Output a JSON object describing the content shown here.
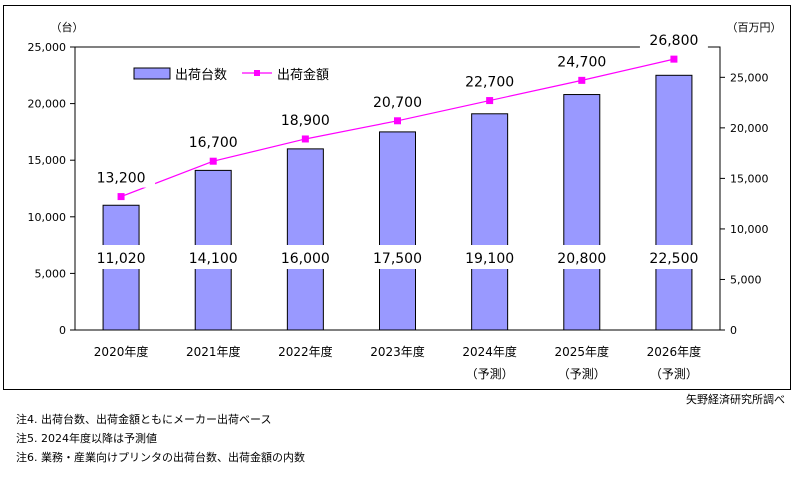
{
  "chart_data": {
    "type": "bar",
    "categories": [
      "2020年度",
      "2021年度",
      "2022年度",
      "2023年度",
      "2024年度",
      "2025年度",
      "2026年度"
    ],
    "category_sublabels": [
      "",
      "",
      "",
      "",
      "（予測）",
      "（予測）",
      "（予測）"
    ],
    "series": [
      {
        "name": "出荷台数",
        "type": "bar",
        "axis": "left",
        "values": [
          11020,
          14100,
          16000,
          17500,
          19100,
          20800,
          22500
        ],
        "color": "#9999ff"
      },
      {
        "name": "出荷金額",
        "type": "line",
        "axis": "right",
        "values": [
          13200,
          16700,
          18900,
          20700,
          22700,
          24700,
          26800
        ],
        "color": "#ff00ff"
      }
    ],
    "bar_labels": [
      "11,020",
      "14,100",
      "16,000",
      "17,500",
      "19,100",
      "20,800",
      "22,500"
    ],
    "line_labels": [
      "13,200",
      "16,700",
      "18,900",
      "20,700",
      "22,700",
      "24,700",
      "26,800"
    ],
    "left_axis": {
      "unit": "（台）",
      "min": 0,
      "max": 25000,
      "ticks": [
        "0",
        "5,000",
        "10,000",
        "15,000",
        "20,000",
        "25,000"
      ]
    },
    "right_axis": {
      "unit": "（百万円）",
      "min": 0,
      "max": 28000,
      "ticks": [
        "0",
        "5,000",
        "10,000",
        "15,000",
        "20,000",
        "25,000"
      ]
    },
    "legend_position": "top-left",
    "grid": false
  },
  "source": "矢野経済研究所調べ",
  "notes": [
    "注4.  出荷台数、出荷金額ともにメーカー出荷ベース",
    "注5.  2024年度以降は予測値",
    "注6.  業務・産業向けプリンタの出荷台数、出荷金額の内数"
  ]
}
